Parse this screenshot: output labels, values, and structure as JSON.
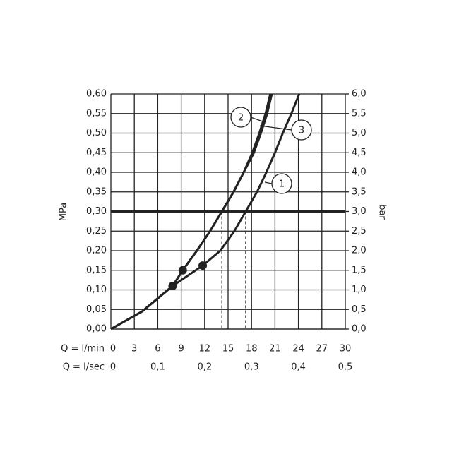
{
  "chart_data": {
    "type": "line",
    "xlabel": "Q = l/min",
    "x2label": "Q = l/sec",
    "ylabel": "MPa",
    "y2label": "bar",
    "xlim": [
      0,
      30
    ],
    "xticks": [
      0,
      3,
      6,
      9,
      12,
      15,
      18,
      21,
      24,
      27,
      30
    ],
    "x2lim": [
      0,
      0.5
    ],
    "x2ticks": [
      0,
      {
        "value": 0.1,
        "label": "0,1"
      },
      {
        "value": 0.2,
        "label": "0,2"
      },
      {
        "value": 0.3,
        "label": "0,3"
      },
      {
        "value": 0.4,
        "label": "0,4"
      },
      {
        "value": 0.5,
        "label": "0,5"
      }
    ],
    "ylim": [
      0,
      0.6
    ],
    "yticks": [
      {
        "value": 0,
        "label": "0,00"
      },
      {
        "value": 0.05,
        "label": "0,05"
      },
      {
        "value": 0.1,
        "label": "0,10"
      },
      {
        "value": 0.15,
        "label": "0,15"
      },
      {
        "value": 0.2,
        "label": "0,20"
      },
      {
        "value": 0.25,
        "label": "0,25"
      },
      {
        "value": 0.3,
        "label": "0,30"
      },
      {
        "value": 0.35,
        "label": "0,35"
      },
      {
        "value": 0.4,
        "label": "0,40"
      },
      {
        "value": 0.45,
        "label": "0,45"
      },
      {
        "value": 0.5,
        "label": "0,50"
      },
      {
        "value": 0.55,
        "label": "0,55"
      },
      {
        "value": 0.6,
        "label": "0,60"
      }
    ],
    "y2lim": [
      0,
      6
    ],
    "y2ticks": [
      {
        "value": 0,
        "label": "0,0"
      },
      {
        "value": 0.5,
        "label": "0,5"
      },
      {
        "value": 1,
        "label": "1,0"
      },
      {
        "value": 1.5,
        "label": "1,5"
      },
      {
        "value": 2,
        "label": "2,0"
      },
      {
        "value": 2.5,
        "label": "2,5"
      },
      {
        "value": 3,
        "label": "3,0"
      },
      {
        "value": 3.5,
        "label": "3,5"
      },
      {
        "value": 4,
        "label": "4,0"
      },
      {
        "value": 4.5,
        "label": "4,5"
      },
      {
        "value": 5,
        "label": "5,0"
      },
      {
        "value": 5.5,
        "label": "5,5"
      },
      {
        "value": 6,
        "label": "6,0"
      }
    ],
    "grid": true,
    "color": "#222222",
    "reference_line": 0.3,
    "drop_lines": [
      14.2,
      17.25
    ],
    "series": [
      {
        "name": "1",
        "x": [
          0,
          4,
          7.9,
          11.75,
          14,
          15.8,
          17.25,
          18.7,
          19.9,
          21,
          22,
          23.1,
          24.1
        ],
        "values": [
          0,
          0.045,
          0.11,
          0.162,
          0.2,
          0.25,
          0.3,
          0.35,
          0.4,
          0.45,
          0.5,
          0.55,
          0.6
        ]
      },
      {
        "name": "2",
        "x": [
          0,
          4,
          7.9,
          9.2,
          11,
          12.7,
          14.2,
          15.7,
          17,
          18.1,
          19,
          19.8,
          20.4
        ],
        "values": [
          0,
          0.045,
          0.11,
          0.15,
          0.2,
          0.25,
          0.3,
          0.35,
          0.4,
          0.45,
          0.5,
          0.55,
          0.6
        ]
      },
      {
        "name": "3",
        "x": [
          0,
          4,
          7.9,
          9.2,
          11,
          12.7,
          14.2,
          15.7,
          17,
          18.3,
          19.2,
          20,
          20.6
        ],
        "values": [
          0,
          0.045,
          0.11,
          0.15,
          0.2,
          0.25,
          0.3,
          0.35,
          0.4,
          0.45,
          0.5,
          0.55,
          0.6
        ]
      }
    ],
    "points": {
      "x": [
        7.9,
        9.2,
        11.75
      ],
      "values": [
        0.11,
        0.15,
        0.162
      ]
    }
  }
}
